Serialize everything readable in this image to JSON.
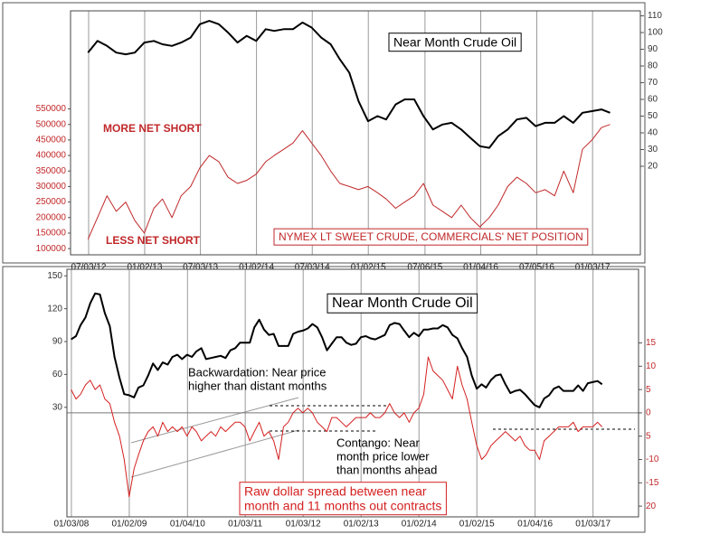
{
  "chart_data": [
    {
      "type": "line",
      "x": [
        "2012-07-01",
        "2012-08-01",
        "2012-09-01",
        "2012-10-01",
        "2012-11-01",
        "2012-12-01",
        "2013-01-01",
        "2013-02-01",
        "2013-03-01",
        "2013-04-01",
        "2013-05-01",
        "2013-06-01",
        "2013-07-01",
        "2013-08-01",
        "2013-09-01",
        "2013-10-01",
        "2013-11-01",
        "2013-12-01",
        "2014-01-01",
        "2014-02-01",
        "2014-03-01",
        "2014-04-01",
        "2014-05-01",
        "2014-06-01",
        "2014-07-01",
        "2014-08-01",
        "2014-09-01",
        "2014-10-01",
        "2014-11-01",
        "2014-12-01",
        "2015-01-01",
        "2015-02-01",
        "2015-03-01",
        "2015-04-01",
        "2015-05-01",
        "2015-06-01",
        "2015-07-01",
        "2015-08-01",
        "2015-09-01",
        "2015-10-01",
        "2015-11-01",
        "2015-12-01",
        "2016-01-01",
        "2016-02-01",
        "2016-03-01",
        "2016-04-01",
        "2016-05-01",
        "2016-06-01",
        "2016-07-01",
        "2016-08-01",
        "2016-09-01",
        "2016-10-01",
        "2016-11-01",
        "2016-12-01",
        "2017-01-01",
        "2017-02-01",
        "2017-03-01"
      ],
      "xlim": [
        "2012-05-05",
        "2017-06-08"
      ],
      "xticks": [
        {
          "value": "2012-07-03",
          "label": "07/03/12"
        },
        {
          "value": "2013-01-02",
          "label": "01/02/13"
        },
        {
          "value": "2013-07-03",
          "label": "07/03/13"
        },
        {
          "value": "2014-01-02",
          "label": "01/02/14"
        },
        {
          "value": "2014-07-03",
          "label": "07/03/14"
        },
        {
          "value": "2015-01-02",
          "label": "01/02/15"
        },
        {
          "value": "2015-07-06",
          "label": "07/06/15"
        },
        {
          "value": "2016-01-04",
          "label": "01/04/16"
        },
        {
          "value": "2016-07-05",
          "label": "07/05/16"
        },
        {
          "value": "2017-01-03",
          "label": "01/03/17"
        }
      ],
      "ylim": [
        80000,
        866000
      ],
      "yticks": [
        100000,
        150000,
        200000,
        250000,
        300000,
        350000,
        400000,
        450000,
        500000,
        550000
      ],
      "ytick_color": "#c0282a",
      "y2lim": [
        -33,
        113
      ],
      "y2ticks": [
        20,
        30,
        40,
        50,
        60,
        70,
        80,
        90,
        100,
        110
      ],
      "y2tick_color": "#333333",
      "vertical_grid": true,
      "series": [
        {
          "color": "#000000",
          "axis": "y2",
          "values": [
            88,
            95,
            92,
            88,
            87,
            88,
            94,
            95,
            93,
            92,
            94,
            97,
            105,
            107,
            105,
            100,
            94,
            98,
            95,
            102,
            101,
            102,
            102,
            106,
            103,
            97,
            93,
            84,
            76,
            59,
            47,
            50,
            48,
            57,
            60,
            60,
            50,
            42,
            45,
            46,
            42,
            37,
            32,
            31,
            38,
            42,
            48,
            49,
            44,
            46,
            46,
            50,
            46,
            52,
            53,
            54,
            52
          ]
        },
        {
          "color": "#c0282a",
          "axis": "y",
          "values": [
            130000,
            200000,
            270000,
            220000,
            250000,
            190000,
            150000,
            230000,
            260000,
            200000,
            270000,
            300000,
            360000,
            400000,
            380000,
            330000,
            310000,
            320000,
            340000,
            380000,
            400000,
            420000,
            440000,
            480000,
            440000,
            400000,
            350000,
            310000,
            300000,
            290000,
            300000,
            280000,
            260000,
            230000,
            250000,
            270000,
            310000,
            240000,
            220000,
            200000,
            240000,
            200000,
            170000,
            200000,
            240000,
            300000,
            330000,
            310000,
            280000,
            290000,
            270000,
            350000,
            280000,
            420000,
            450000,
            490000,
            500000
          ]
        }
      ],
      "annotations": [
        {
          "text": [
            "Near Month Crude Oil"
          ],
          "color": "#000000",
          "box": true
        },
        {
          "text": [
            "MORE NET SHORT"
          ],
          "color": "#c0282a",
          "box": false
        },
        {
          "text": [
            "LESS NET SHORT"
          ],
          "color": "#c0282a",
          "box": false
        },
        {
          "text": [
            "NYMEX LT SWEET CRUDE, COMMERCIALS' NET POSITION"
          ],
          "color": "#c0282a",
          "box": true
        }
      ]
    },
    {
      "type": "line",
      "x": [
        "2008-01-01",
        "2008-02-01",
        "2008-03-01",
        "2008-04-01",
        "2008-05-01",
        "2008-06-01",
        "2008-07-01",
        "2008-08-01",
        "2008-09-01",
        "2008-10-01",
        "2008-11-01",
        "2008-12-01",
        "2009-01-01",
        "2009-02-01",
        "2009-03-01",
        "2009-04-01",
        "2009-05-01",
        "2009-06-01",
        "2009-07-01",
        "2009-08-01",
        "2009-09-01",
        "2009-10-01",
        "2009-11-01",
        "2009-12-01",
        "2010-01-01",
        "2010-02-01",
        "2010-03-01",
        "2010-04-01",
        "2010-05-01",
        "2010-06-01",
        "2010-07-01",
        "2010-08-01",
        "2010-09-01",
        "2010-10-01",
        "2010-11-01",
        "2010-12-01",
        "2011-01-01",
        "2011-02-01",
        "2011-03-01",
        "2011-04-01",
        "2011-05-01",
        "2011-06-01",
        "2011-07-01",
        "2011-08-01",
        "2011-09-01",
        "2011-10-01",
        "2011-11-01",
        "2011-12-01",
        "2012-01-01",
        "2012-02-01",
        "2012-03-01",
        "2012-04-01",
        "2012-05-01",
        "2012-06-01",
        "2012-07-01",
        "2012-08-01",
        "2012-09-01",
        "2012-10-01",
        "2012-11-01",
        "2012-12-01",
        "2013-01-01",
        "2013-02-01",
        "2013-03-01",
        "2013-04-01",
        "2013-05-01",
        "2013-06-01",
        "2013-07-01",
        "2013-08-01",
        "2013-09-01",
        "2013-10-01",
        "2013-11-01",
        "2013-12-01",
        "2014-01-01",
        "2014-02-01",
        "2014-03-01",
        "2014-04-01",
        "2014-05-01",
        "2014-06-01",
        "2014-07-01",
        "2014-08-01",
        "2014-09-01",
        "2014-10-01",
        "2014-11-01",
        "2014-12-01",
        "2015-01-01",
        "2015-02-01",
        "2015-03-01",
        "2015-04-01",
        "2015-05-01",
        "2015-06-01",
        "2015-07-01",
        "2015-08-01",
        "2015-09-01",
        "2015-10-01",
        "2015-11-01",
        "2015-12-01",
        "2016-01-01",
        "2016-02-01",
        "2016-03-01",
        "2016-04-01",
        "2016-05-01",
        "2016-06-01",
        "2016-07-01",
        "2016-08-01",
        "2016-09-01",
        "2016-10-01",
        "2016-11-01",
        "2016-12-01",
        "2017-01-01",
        "2017-02-01",
        "2017-03-01"
      ],
      "xlim": [
        "2007-12-06",
        "2017-10-17"
      ],
      "xticks": [
        {
          "value": "2008-01-03",
          "label": "01/03/08"
        },
        {
          "value": "2009-01-02",
          "label": "01/02/09"
        },
        {
          "value": "2010-01-04",
          "label": "01/04/10"
        },
        {
          "value": "2011-01-03",
          "label": "01/03/11"
        },
        {
          "value": "2012-01-03",
          "label": "01/03/12"
        },
        {
          "value": "2013-01-02",
          "label": "01/02/13"
        },
        {
          "value": "2014-01-02",
          "label": "01/02/14"
        },
        {
          "value": "2015-01-02",
          "label": "01/02/15"
        },
        {
          "value": "2016-01-04",
          "label": "01/04/16"
        },
        {
          "value": "2017-01-03",
          "label": "01/03/17"
        }
      ],
      "ylim": [
        -70,
        156
      ],
      "yticks": [
        30,
        60,
        90,
        120,
        150
      ],
      "ytick_color": "#333333",
      "y2lim": [
        -22.3,
        30.8
      ],
      "y2ticks": [
        {
          "value": -20,
          "label": "20"
        },
        -15,
        -10,
        {
          "value": -5,
          "label": "5"
        },
        0,
        5,
        10,
        15
      ],
      "y2tick_color": "#c0282a",
      "vertical_grid": true,
      "zero_line": true,
      "series": [
        {
          "color": "#000000",
          "axis": "y",
          "values": [
            92,
            95,
            105,
            112,
            125,
            134,
            133,
            116,
            104,
            76,
            57,
            42,
            41,
            39,
            48,
            50,
            59,
            70,
            64,
            71,
            69,
            76,
            78,
            74,
            78,
            76,
            81,
            84,
            74,
            75,
            76,
            77,
            75,
            82,
            84,
            89,
            89,
            89,
            103,
            110,
            101,
            96,
            97,
            86,
            86,
            86,
            97,
            99,
            100,
            102,
            106,
            103,
            94,
            82,
            88,
            94,
            94,
            89,
            87,
            88,
            94,
            95,
            93,
            92,
            94,
            96,
            105,
            107,
            106,
            100,
            94,
            98,
            95,
            101,
            101,
            102,
            102,
            105,
            103,
            96,
            93,
            84,
            76,
            59,
            47,
            51,
            48,
            55,
            59,
            60,
            51,
            43,
            45,
            46,
            42,
            37,
            32,
            30,
            38,
            41,
            47,
            49,
            45,
            45,
            45,
            50,
            45,
            52,
            53,
            54,
            51
          ]
        },
        {
          "color": "#d42020",
          "axis": "y2",
          "values": [
            5,
            3,
            4,
            6,
            7,
            5,
            6,
            3,
            2,
            -2,
            -5,
            -10,
            -18,
            -12,
            -9,
            -6,
            -4,
            -3,
            -5,
            -2,
            -4,
            -3,
            -4,
            -3,
            -5,
            -3,
            -4,
            -6,
            -5,
            -4,
            -5,
            -3,
            -4,
            -3,
            -2,
            -2,
            -3,
            -6,
            -4,
            -2,
            -5,
            -4,
            -6,
            -10,
            -3,
            -2,
            0,
            1,
            0,
            1,
            0,
            -2,
            -3,
            -4,
            -1,
            -1,
            -2,
            -3,
            -2,
            -1,
            -1,
            -1,
            0,
            -1,
            -1,
            0,
            2,
            0,
            -1,
            0,
            -2,
            0,
            1,
            4,
            12,
            9,
            8,
            7,
            5,
            3,
            10,
            6,
            3,
            -2,
            -7,
            -10,
            -9,
            -7,
            -6,
            -5,
            -4,
            -5,
            -6,
            -5,
            -7,
            -8,
            -8,
            -10,
            -6,
            -5,
            -4,
            -3,
            -3,
            -3,
            -2,
            -4,
            -3,
            -3,
            -3,
            -2,
            -3
          ]
        }
      ],
      "annotations": [
        {
          "text": [
            "Near Month Crude Oil"
          ],
          "color": "#000000",
          "box": true
        },
        {
          "text": [
            "Backwardation: Near price",
            "higher than distant months"
          ],
          "color": "#000000",
          "box": false
        },
        {
          "text": [
            "Contango: Near",
            "month price lower",
            "than months ahead"
          ],
          "color": "#000000",
          "box": false
        },
        {
          "text": [
            "Raw dollar spread between near",
            "month and 11 months out contracts"
          ],
          "color": "#d42020",
          "box": true
        }
      ]
    }
  ]
}
